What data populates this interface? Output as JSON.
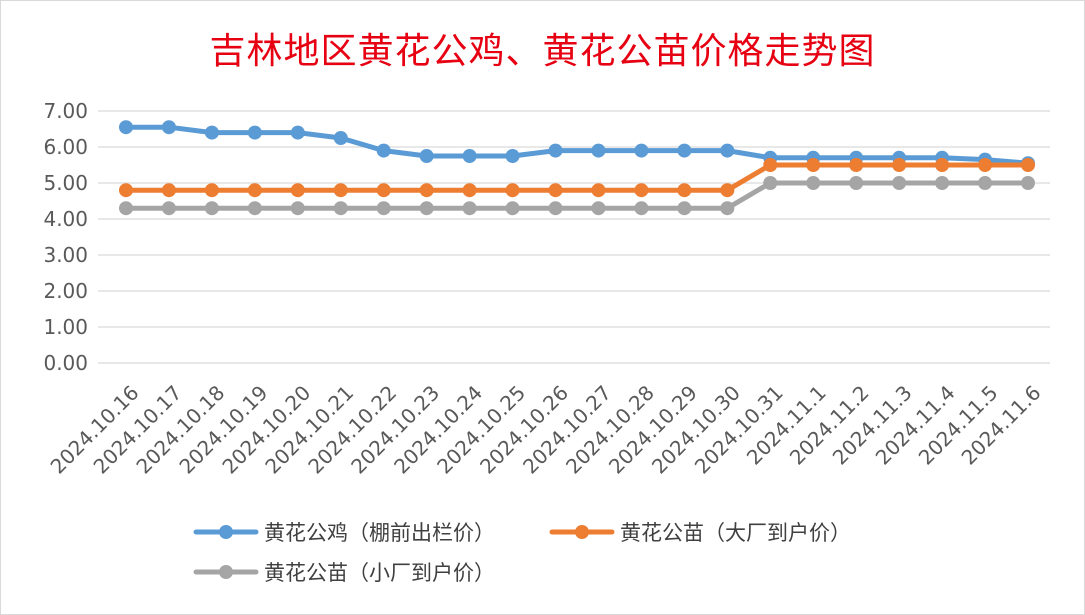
{
  "title": "吉林地区黄花公鸡、黄花公苗价格走势图",
  "chart_data": {
    "type": "line",
    "title": "吉林地区黄花公鸡、黄花公苗价格走势图",
    "categories": [
      "2024.10.16",
      "2024.10.17",
      "2024.10.18",
      "2024.10.19",
      "2024.10.20",
      "2024.10.21",
      "2024.10.22",
      "2024.10.23",
      "2024.10.24",
      "2024.10.25",
      "2024.10.26",
      "2024.10.27",
      "2024.10.28",
      "2024.10.29",
      "2024.10.30",
      "2024.10.31",
      "2024.11.1",
      "2024.11.2",
      "2024.11.3",
      "2024.11.4",
      "2024.11.5",
      "2024.11.6"
    ],
    "yticks": [
      "0.00",
      "1.00",
      "2.00",
      "3.00",
      "4.00",
      "5.00",
      "6.00",
      "7.00"
    ],
    "ylim": [
      0,
      7
    ],
    "grid": true,
    "legend_position": "bottom",
    "series": [
      {
        "name": "黄花公鸡（棚前出栏价）",
        "color": "#5b9bd5",
        "values": [
          6.55,
          6.55,
          6.4,
          6.4,
          6.4,
          6.25,
          5.9,
          5.75,
          5.75,
          5.75,
          5.9,
          5.9,
          5.9,
          5.9,
          5.9,
          5.7,
          5.7,
          5.7,
          5.7,
          5.7,
          5.65,
          5.55
        ]
      },
      {
        "name": "黄花公苗（大厂到户价）",
        "color": "#ed7d31",
        "values": [
          4.8,
          4.8,
          4.8,
          4.8,
          4.8,
          4.8,
          4.8,
          4.8,
          4.8,
          4.8,
          4.8,
          4.8,
          4.8,
          4.8,
          4.8,
          5.5,
          5.5,
          5.5,
          5.5,
          5.5,
          5.5,
          5.5
        ]
      },
      {
        "name": "黄花公苗（小厂到户价）",
        "color": "#a5a5a5",
        "values": [
          4.3,
          4.3,
          4.3,
          4.3,
          4.3,
          4.3,
          4.3,
          4.3,
          4.3,
          4.3,
          4.3,
          4.3,
          4.3,
          4.3,
          4.3,
          5.0,
          5.0,
          5.0,
          5.0,
          5.0,
          5.0,
          5.0
        ]
      }
    ]
  }
}
